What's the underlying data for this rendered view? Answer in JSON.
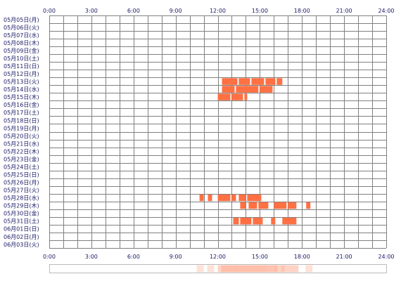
{
  "colors": {
    "bar": "#ff7043",
    "grid": "#808080",
    "grid_light": "#bbbbbb",
    "text": "#1a1a66",
    "density_base": "#ffd9c4"
  },
  "chart_data": {
    "type": "timeline",
    "title": "",
    "xlabel": "",
    "ylabel": "",
    "xlim": [
      0,
      24
    ],
    "x_ticks": [
      "0:00",
      "3:00",
      "6:00",
      "9:00",
      "12:00",
      "15:00",
      "18:00",
      "21:00",
      "24:00"
    ],
    "x_tick_values": [
      0,
      3,
      6,
      9,
      12,
      15,
      18,
      21,
      24
    ],
    "days": [
      {
        "label": "05月05日(月)",
        "spans": []
      },
      {
        "label": "05月06日(火)",
        "spans": []
      },
      {
        "label": "05月07日(水)",
        "spans": []
      },
      {
        "label": "05月08日(木)",
        "spans": []
      },
      {
        "label": "05月09日(金)",
        "spans": []
      },
      {
        "label": "05月10日(土)",
        "spans": []
      },
      {
        "label": "05月11日(日)",
        "spans": []
      },
      {
        "label": "05月12日(月)",
        "spans": []
      },
      {
        "label": "05月13日(火)",
        "spans": [
          [
            12.3,
            13.4
          ],
          [
            13.5,
            14.3
          ],
          [
            14.4,
            15.3
          ],
          [
            15.4,
            16.1
          ],
          [
            16.2,
            16.6
          ]
        ]
      },
      {
        "label": "05月14日(水)",
        "spans": [
          [
            12.3,
            13.2
          ],
          [
            13.3,
            14.9
          ],
          [
            15.0,
            15.9
          ]
        ]
      },
      {
        "label": "05月15日(木)",
        "spans": [
          [
            12.0,
            12.9
          ],
          [
            13.0,
            13.8
          ],
          [
            13.9,
            14.1
          ]
        ]
      },
      {
        "label": "05月16日(金)",
        "spans": []
      },
      {
        "label": "05月17日(土)",
        "spans": []
      },
      {
        "label": "05月18日(日)",
        "spans": []
      },
      {
        "label": "05月19日(月)",
        "spans": []
      },
      {
        "label": "05月20日(火)",
        "spans": []
      },
      {
        "label": "05月21日(水)",
        "spans": []
      },
      {
        "label": "05月22日(木)",
        "spans": []
      },
      {
        "label": "05月23日(金)",
        "spans": []
      },
      {
        "label": "05月24日(土)",
        "spans": []
      },
      {
        "label": "05月25日(日)",
        "spans": []
      },
      {
        "label": "05月26日(月)",
        "spans": []
      },
      {
        "label": "05月27日(火)",
        "spans": []
      },
      {
        "label": "05月28日(水)",
        "spans": [
          [
            10.7,
            11.0
          ],
          [
            11.3,
            11.6
          ],
          [
            12.0,
            12.9
          ],
          [
            13.0,
            13.3
          ],
          [
            13.5,
            14.0
          ],
          [
            14.1,
            15.1
          ]
        ]
      },
      {
        "label": "05月29日(木)",
        "spans": [
          [
            13.6,
            14.0
          ],
          [
            14.2,
            14.8
          ],
          [
            14.9,
            15.6
          ],
          [
            16.0,
            16.9
          ],
          [
            17.0,
            17.6
          ],
          [
            18.3,
            18.6
          ]
        ]
      },
      {
        "label": "05月30日(金)",
        "spans": []
      },
      {
        "label": "05月31日(土)",
        "spans": [
          [
            13.1,
            13.5
          ],
          [
            13.6,
            14.4
          ],
          [
            14.5,
            15.2
          ],
          [
            15.8,
            16.1
          ],
          [
            16.6,
            17.6
          ]
        ]
      },
      {
        "label": "06月01日(日)",
        "spans": []
      },
      {
        "label": "06月02日(月)",
        "spans": []
      },
      {
        "label": "06月03日(火)",
        "spans": []
      }
    ]
  }
}
